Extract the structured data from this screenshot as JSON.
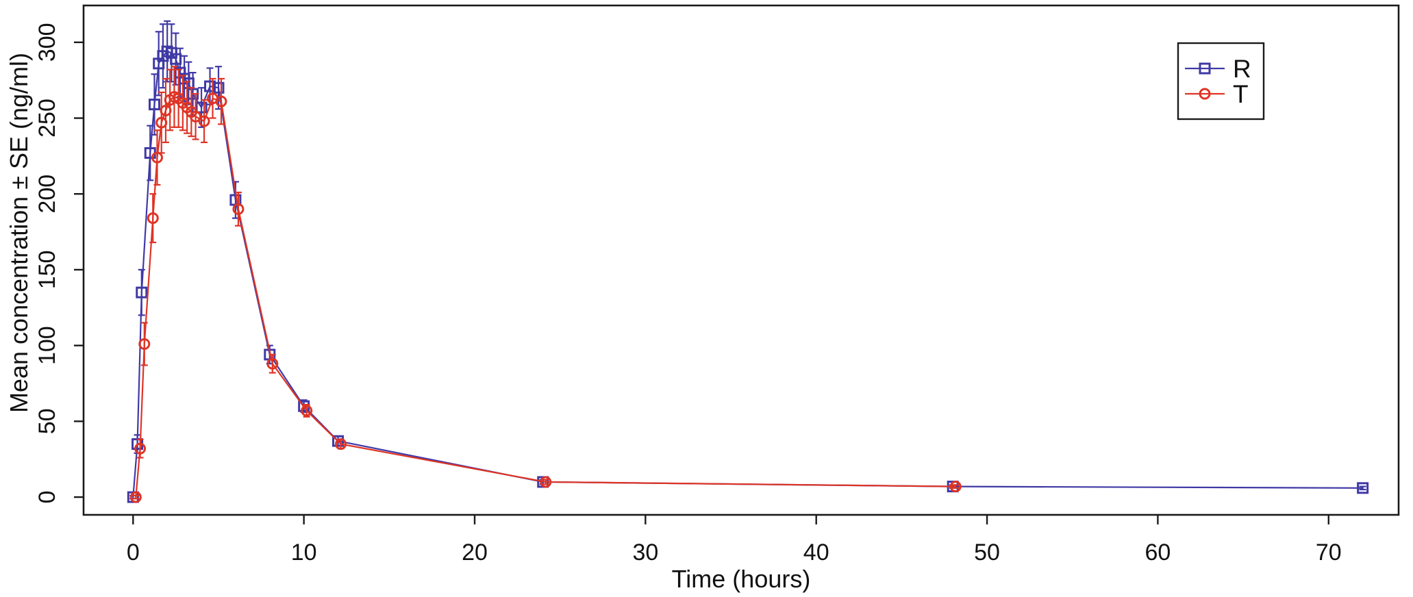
{
  "figure": {
    "background": "#ffffff",
    "axis_color": "#1a1a1a"
  },
  "chart_data": {
    "type": "line",
    "title": "",
    "xlabel": "Time (hours)",
    "ylabel": "Mean concentration ± SE (ng/ml)",
    "xlim": [
      -2.9,
      74.1
    ],
    "ylim": [
      -11.7,
      324.3
    ],
    "x_ticks": [
      0,
      10,
      20,
      30,
      40,
      50,
      60,
      70
    ],
    "y_ticks": [
      0,
      50,
      100,
      150,
      200,
      250,
      300
    ],
    "grid": false,
    "error_bars": "standard error, capped, same color as series",
    "legend": {
      "position": "top-right",
      "entries": [
        "R",
        "T"
      ]
    },
    "series": [
      {
        "name": "R",
        "marker": "open-square",
        "color": "#3f39a5",
        "x": [
          0,
          0.25,
          0.5,
          1,
          1.25,
          1.5,
          1.75,
          2,
          2.25,
          2.5,
          2.75,
          3,
          3.25,
          3.5,
          4,
          4.5,
          5,
          6,
          8,
          10,
          12,
          24,
          48,
          72
        ],
        "y": [
          0,
          35,
          135,
          227,
          259,
          286,
          291,
          294,
          293,
          289,
          280,
          276,
          273,
          266,
          257,
          271,
          270,
          196,
          94,
          60,
          37,
          10,
          7,
          6
        ],
        "se": [
          1,
          6,
          15,
          18,
          20,
          21,
          21,
          20,
          19,
          17,
          16,
          15,
          14,
          14,
          13,
          12,
          14,
          12,
          6,
          4,
          3,
          1.5,
          1,
          1
        ]
      },
      {
        "name": "T",
        "marker": "open-circle",
        "color": "#de3425",
        "x": [
          0,
          0.25,
          0.5,
          1,
          1.25,
          1.5,
          1.75,
          2,
          2.25,
          2.5,
          2.75,
          3,
          3.25,
          3.5,
          4,
          4.5,
          5,
          6,
          8,
          10,
          12,
          24,
          48
        ],
        "y": [
          0,
          32,
          101,
          184,
          224,
          247,
          255,
          262,
          264,
          263,
          260,
          257,
          254,
          251,
          248,
          263,
          261,
          190,
          88,
          57,
          35,
          10,
          7
        ],
        "se": [
          1,
          6,
          14,
          16,
          18,
          20,
          21,
          20,
          20,
          19,
          18,
          17,
          16,
          15,
          14,
          13,
          15,
          11,
          6,
          4,
          3,
          1.5,
          1
        ]
      }
    ]
  }
}
